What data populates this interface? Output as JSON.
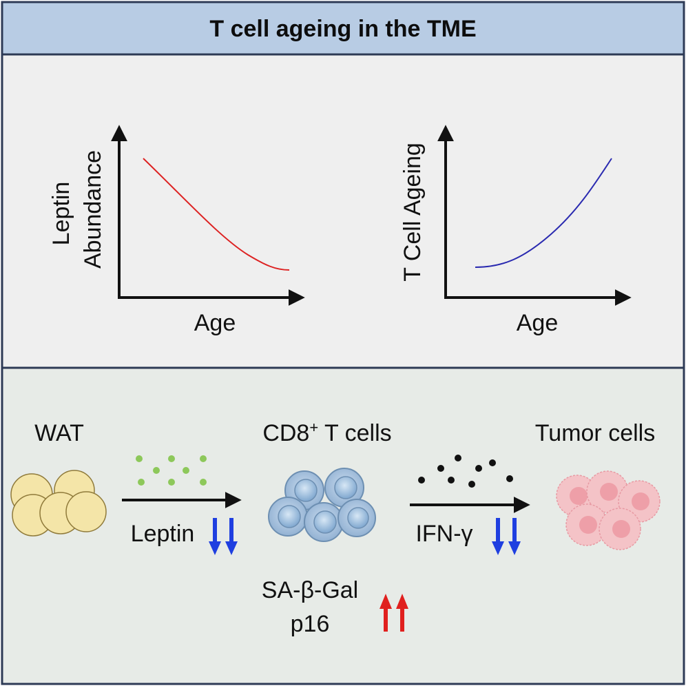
{
  "title": "T cell ageing in the TME",
  "colors": {
    "header_bg": "#b8cce4",
    "panel_top_bg": "#efefef",
    "panel_bottom_bg": "#e7ebe7",
    "border": "#2d3a55",
    "axis": "#111111",
    "leptin_curve": "#dd2222",
    "tcell_curve": "#2a2ab0",
    "down_arrow": "#1f3fe0",
    "up_arrow": "#e0201e",
    "leptin_dot": "#8dc85a",
    "ifn_dot": "#111111",
    "wat_fill": "#f4e5a8",
    "tcell_fill": "#a9c4df",
    "tumor_fill": "#f4c3c7"
  },
  "charts": {
    "leptin": {
      "ylabel_line1": "Leptin",
      "ylabel_line2": "Abundance",
      "xlabel": "Age"
    },
    "tcell": {
      "ylabel": "T Cell Ageing",
      "xlabel": "Age"
    }
  },
  "chart_data": [
    {
      "type": "line",
      "title": "",
      "xlabel": "Age",
      "ylabel": "Leptin Abundance",
      "series": [
        {
          "name": "Leptin Abundance",
          "trend": "decreasing",
          "x": [
            0,
            0.25,
            0.5,
            0.75,
            1.0
          ],
          "y": [
            0.94,
            0.7,
            0.42,
            0.18,
            0.1
          ]
        }
      ]
    },
    {
      "type": "line",
      "title": "",
      "xlabel": "Age",
      "ylabel": "T Cell Ageing",
      "series": [
        {
          "name": "T Cell Ageing",
          "trend": "increasing",
          "x": [
            0,
            0.25,
            0.5,
            0.75,
            1.0
          ],
          "y": [
            0.18,
            0.24,
            0.42,
            0.68,
            0.94
          ]
        }
      ]
    }
  ],
  "flow": {
    "wat_label": "WAT",
    "tcells_label_prefix": "CD8",
    "tcells_label_sup": "+",
    "tcells_label_suffix": " T cells",
    "tumor_label": "Tumor cells",
    "leptin_label": "Leptin",
    "ifn_label": "IFN-γ",
    "senescence_marker_1": "SA-β-Gal",
    "senescence_marker_2": "p16"
  }
}
